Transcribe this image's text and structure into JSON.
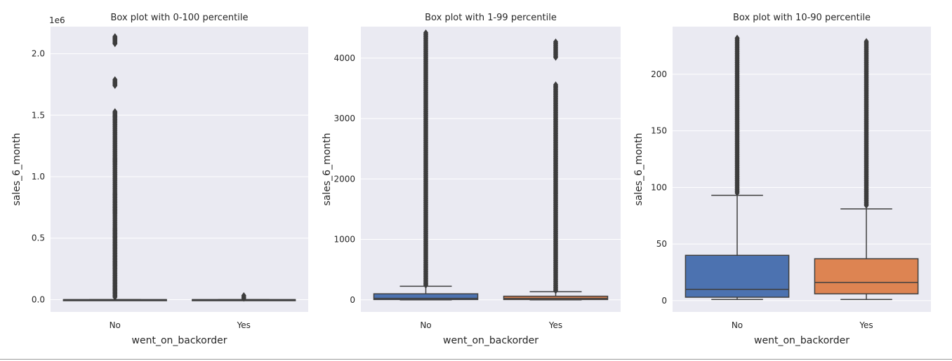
{
  "chart_data": [
    {
      "type": "box",
      "title": "Box plot with 0-100 percentile",
      "xlabel": "went_on_backorder",
      "ylabel": "sales_6_month",
      "y_offset_label": "1e6",
      "y_scale_factor": 1000000,
      "ylim": [
        -0.1,
        2.22
      ],
      "yticks": [
        0.0,
        0.5,
        1.0,
        1.5,
        2.0
      ],
      "ytick_labels": [
        "0.0",
        "0.5",
        "1.0",
        "1.5",
        "2.0"
      ],
      "grid": true,
      "categories": [
        "No",
        "Yes"
      ],
      "boxes": [
        {
          "category": "No",
          "color": "#4c72b0",
          "whislo": 0.0,
          "q1": 0.0,
          "med": 0.001,
          "q3": 0.005,
          "whishi": 0.012,
          "fliers": [
            0.02,
            0.05,
            0.08,
            0.1,
            0.13,
            0.16,
            0.2,
            0.25,
            0.28,
            0.3,
            0.33,
            0.36,
            0.4,
            0.43,
            0.46,
            0.5,
            0.52,
            0.55,
            0.58,
            0.7,
            0.73,
            0.76,
            0.8,
            0.84,
            0.87,
            0.97,
            1.03,
            1.1,
            1.13,
            1.15,
            1.22,
            1.3,
            1.4,
            1.45,
            1.48,
            1.5,
            1.53,
            1.74,
            1.76,
            1.79,
            2.08,
            2.1,
            2.12,
            2.14
          ]
        },
        {
          "category": "Yes",
          "color": "#dd8452",
          "whislo": 0.0,
          "q1": 0.0,
          "med": 0.001,
          "q3": 0.003,
          "whishi": 0.006,
          "fliers": [
            0.01,
            0.018,
            0.026,
            0.034
          ]
        }
      ]
    },
    {
      "type": "box",
      "title": "Box plot with 1-99 percentile",
      "xlabel": "went_on_backorder",
      "ylabel": "sales_6_month",
      "ylim": [
        -200,
        4520
      ],
      "yticks": [
        0,
        1000,
        2000,
        3000,
        4000
      ],
      "ytick_labels": [
        "0",
        "1000",
        "2000",
        "3000",
        "4000"
      ],
      "grid": true,
      "categories": [
        "No",
        "Yes"
      ],
      "boxes": [
        {
          "category": "No",
          "color": "#4c72b0",
          "whislo": 0,
          "q1": 5,
          "med": 25,
          "q3": 100,
          "whishi": 225,
          "fliers": [
            240,
            300,
            400,
            500,
            600,
            800,
            1000,
            1200,
            1400,
            1600,
            1800,
            2000,
            2200,
            2400,
            2600,
            2800,
            3000,
            3200,
            3400,
            3600,
            3800,
            4000,
            4200,
            4350,
            4420
          ]
        },
        {
          "category": "Yes",
          "color": "#dd8452",
          "whislo": 0,
          "q1": 5,
          "med": 25,
          "q3": 60,
          "whishi": 135,
          "fliers": [
            150,
            250,
            400,
            600,
            800,
            1000,
            1200,
            1400,
            1600,
            1750,
            1800,
            2000,
            2100,
            2200,
            2300,
            2400,
            2500,
            2600,
            2700,
            2800,
            2900,
            3000,
            3100,
            3200,
            3300,
            3400,
            3500,
            3560,
            4010,
            4270
          ]
        }
      ]
    },
    {
      "type": "box",
      "title": "Box plot with 10-90 percentile",
      "xlabel": "went_on_backorder",
      "ylabel": "sales_6_month",
      "ylim": [
        -10,
        242
      ],
      "yticks": [
        0,
        50,
        100,
        150,
        200
      ],
      "ytick_labels": [
        "0",
        "50",
        "100",
        "150",
        "200"
      ],
      "grid": true,
      "categories": [
        "No",
        "Yes"
      ],
      "boxes": [
        {
          "category": "No",
          "color": "#4c72b0",
          "whislo": 1,
          "q1": 3,
          "med": 10,
          "q3": 40,
          "whishi": 93,
          "fliers": [
            95,
            100,
            110,
            120,
            130,
            140,
            150,
            160,
            170,
            180,
            190,
            200,
            210,
            220,
            228,
            232
          ]
        },
        {
          "category": "Yes",
          "color": "#dd8452",
          "whislo": 1,
          "q1": 6,
          "med": 16,
          "q3": 37,
          "whishi": 81,
          "fliers": [
            84,
            90,
            100,
            110,
            120,
            130,
            140,
            150,
            160,
            170,
            180,
            190,
            200,
            210,
            218,
            224,
            229
          ]
        }
      ]
    }
  ]
}
